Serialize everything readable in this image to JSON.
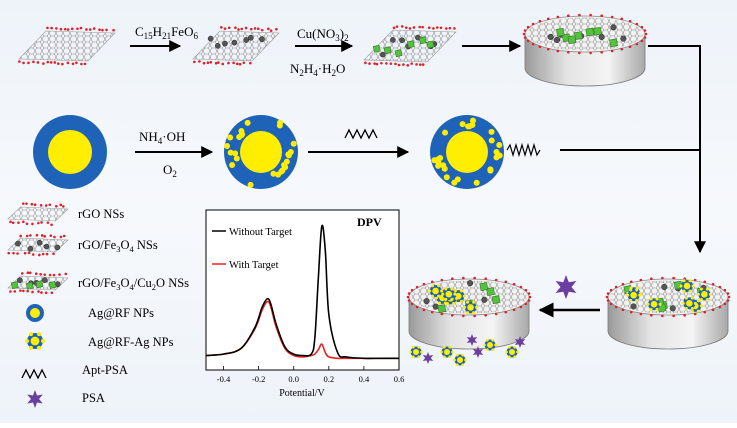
{
  "reactions": {
    "r1_reagent": "C15H21FeO6",
    "r2_reagent_top": "Cu(NO3)2",
    "r2_reagent_bottom": "N2H4·H2O",
    "r3_reagent_top": "NH4·OH",
    "r3_reagent_bottom": "O2"
  },
  "legend": {
    "items": [
      {
        "label": "rGO NSs",
        "icon": "rgo-sheet-icon"
      },
      {
        "label": "rGO/Fe3O4 NSs",
        "icon": "rgo-fe3o4-sheet-icon"
      },
      {
        "label": "rGO/Fe3O4/Cu2O NSs",
        "icon": "rgo-fe3o4-cu2o-sheet-icon"
      },
      {
        "label": "Ag@RF NPs",
        "icon": "ag-rf-particle-icon"
      },
      {
        "label": "Ag@RF-Ag NPs",
        "icon": "ag-rf-ag-particle-icon"
      },
      {
        "label": "Apt-PSA",
        "icon": "aptamer-icon"
      },
      {
        "label": "PSA",
        "icon": "psa-star-icon"
      }
    ]
  },
  "colors": {
    "graphene": "#7a7a7a",
    "oxygen": "#e0202a",
    "fe3o4": "#555555",
    "cu2o": "#56c040",
    "rf_shell": "#1f63b8",
    "ag_core": "#ffee00",
    "psa": "#6a3fa0",
    "without_target": "#000000",
    "with_target": "#e8231f"
  },
  "chart_data": {
    "type": "line",
    "title": "DPV",
    "xlabel": "Potential/V",
    "ylabel": "",
    "xlim": [
      -0.5,
      0.6
    ],
    "x_ticks": [
      "-0.4",
      "-0.2",
      "0.0",
      "0.2",
      "0.4",
      "0.6"
    ],
    "legend_placement": "top-left",
    "series": [
      {
        "name": "Without Target",
        "color": "#000000",
        "x": [
          -0.5,
          -0.4,
          -0.3,
          -0.22,
          -0.18,
          -0.15,
          -0.13,
          -0.1,
          -0.05,
          0.0,
          0.05,
          0.1,
          0.12,
          0.14,
          0.16,
          0.18,
          0.2,
          0.25,
          0.3,
          0.4,
          0.5,
          0.6
        ],
        "y": [
          0.06,
          0.07,
          0.11,
          0.26,
          0.4,
          0.46,
          0.42,
          0.28,
          0.12,
          0.07,
          0.06,
          0.07,
          0.18,
          0.6,
          0.97,
          0.8,
          0.35,
          0.08,
          0.05,
          0.04,
          0.04,
          0.04
        ]
      },
      {
        "name": "With Target",
        "color": "#e8231f",
        "x": [
          -0.5,
          -0.4,
          -0.3,
          -0.22,
          -0.18,
          -0.15,
          -0.13,
          -0.1,
          -0.05,
          0.0,
          0.05,
          0.1,
          0.12,
          0.14,
          0.16,
          0.18,
          0.2,
          0.25,
          0.3,
          0.4,
          0.5,
          0.6
        ],
        "y": [
          0.06,
          0.07,
          0.11,
          0.25,
          0.38,
          0.44,
          0.4,
          0.26,
          0.11,
          0.06,
          0.05,
          0.06,
          0.07,
          0.1,
          0.14,
          0.08,
          0.05,
          0.04,
          0.04,
          0.04,
          0.04,
          0.04
        ]
      }
    ]
  }
}
